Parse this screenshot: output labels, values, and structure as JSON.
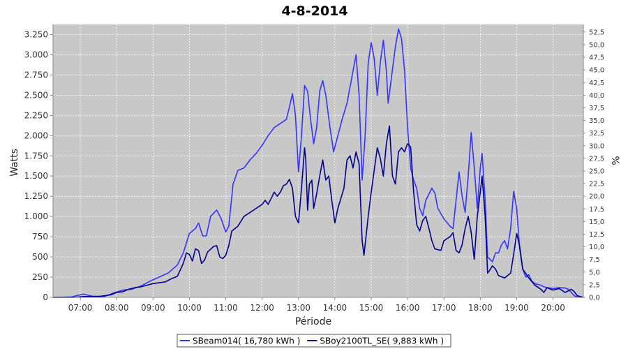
{
  "chart_data": {
    "type": "line",
    "title": "4-8-2014",
    "xlabel": "Période",
    "ylabel": "Watts",
    "y2label": "%",
    "x_range": [
      "06:15",
      "20:50"
    ],
    "x_ticks": [
      "07:00",
      "08:00",
      "09:00",
      "10:00",
      "11:00",
      "12:00",
      "13:00",
      "14:00",
      "15:00",
      "16:00",
      "17:00",
      "18:00",
      "19:00",
      "20:00"
    ],
    "ylim": [
      0,
      3375
    ],
    "y_ticks": [
      0,
      250,
      500,
      750,
      1000,
      1250,
      1500,
      1750,
      2000,
      2250,
      2500,
      2750,
      3000,
      3250
    ],
    "y_tick_labels": [
      "0",
      "250",
      "500",
      "750",
      "1.000",
      "1.250",
      "1.500",
      "1.750",
      "2.000",
      "2.250",
      "2.500",
      "2.750",
      "3.000",
      "3.250"
    ],
    "y2lim": [
      0,
      54
    ],
    "y2_ticks": [
      0,
      2.5,
      5,
      7.5,
      10,
      12.5,
      15,
      17.5,
      20,
      22.5,
      25,
      27.5,
      30,
      32.5,
      35,
      37.5,
      40,
      42.5,
      45,
      47.5,
      50,
      52.5
    ],
    "y2_tick_labels": [
      "0,0",
      "2,5",
      "5,0",
      "7,5",
      "10,0",
      "12,5",
      "15,0",
      "17,5",
      "20,0",
      "22,5",
      "25,0",
      "27,5",
      "30,0",
      "32,5",
      "35,0",
      "37,5",
      "40,0",
      "42,5",
      "45,0",
      "47,5",
      "50,0",
      "52,5"
    ],
    "grid": true,
    "legend_position": "bottom-center",
    "series": [
      {
        "name": "SBeam014( 16,780 kWh )",
        "color": "#3333ff",
        "points": [
          [
            "06:15",
            0
          ],
          [
            "06:45",
            5
          ],
          [
            "07:05",
            40
          ],
          [
            "07:20",
            15
          ],
          [
            "07:40",
            10
          ],
          [
            "07:55",
            55
          ],
          [
            "08:10",
            90
          ],
          [
            "08:25",
            100
          ],
          [
            "08:40",
            140
          ],
          [
            "08:55",
            200
          ],
          [
            "09:10",
            250
          ],
          [
            "09:25",
            300
          ],
          [
            "09:40",
            400
          ],
          [
            "09:50",
            550
          ],
          [
            "10:00",
            790
          ],
          [
            "10:10",
            850
          ],
          [
            "10:15",
            920
          ],
          [
            "10:22",
            760
          ],
          [
            "10:28",
            760
          ],
          [
            "10:35",
            1000
          ],
          [
            "10:45",
            1080
          ],
          [
            "10:52",
            980
          ],
          [
            "11:00",
            810
          ],
          [
            "11:05",
            880
          ],
          [
            "11:12",
            1400
          ],
          [
            "11:20",
            1570
          ],
          [
            "11:30",
            1600
          ],
          [
            "11:40",
            1700
          ],
          [
            "11:50",
            1780
          ],
          [
            "12:00",
            1880
          ],
          [
            "12:10",
            2000
          ],
          [
            "12:20",
            2100
          ],
          [
            "12:30",
            2150
          ],
          [
            "12:40",
            2200
          ],
          [
            "12:45",
            2350
          ],
          [
            "12:50",
            2520
          ],
          [
            "12:55",
            2250
          ],
          [
            "13:00",
            1550
          ],
          [
            "13:05",
            2000
          ],
          [
            "13:10",
            2620
          ],
          [
            "13:15",
            2550
          ],
          [
            "13:20",
            2200
          ],
          [
            "13:25",
            1900
          ],
          [
            "13:30",
            2100
          ],
          [
            "13:35",
            2550
          ],
          [
            "13:40",
            2680
          ],
          [
            "13:45",
            2500
          ],
          [
            "13:52",
            2100
          ],
          [
            "13:58",
            1800
          ],
          [
            "14:05",
            2000
          ],
          [
            "14:12",
            2200
          ],
          [
            "14:20",
            2400
          ],
          [
            "14:30",
            2800
          ],
          [
            "14:35",
            3000
          ],
          [
            "14:40",
            2500
          ],
          [
            "14:45",
            1450
          ],
          [
            "14:50",
            2000
          ],
          [
            "14:55",
            2900
          ],
          [
            "15:00",
            3150
          ],
          [
            "15:05",
            2950
          ],
          [
            "15:10",
            2500
          ],
          [
            "15:15",
            2900
          ],
          [
            "15:20",
            3180
          ],
          [
            "15:25",
            2800
          ],
          [
            "15:28",
            2400
          ],
          [
            "15:33",
            2700
          ],
          [
            "15:40",
            3100
          ],
          [
            "15:45",
            3320
          ],
          [
            "15:50",
            3200
          ],
          [
            "15:55",
            2800
          ],
          [
            "16:00",
            2100
          ],
          [
            "16:05",
            1600
          ],
          [
            "16:10",
            1450
          ],
          [
            "16:15",
            1350
          ],
          [
            "16:20",
            1100
          ],
          [
            "16:25",
            1010
          ],
          [
            "16:30",
            1200
          ],
          [
            "16:40",
            1350
          ],
          [
            "16:45",
            1290
          ],
          [
            "16:50",
            1100
          ],
          [
            "17:00",
            970
          ],
          [
            "17:10",
            880
          ],
          [
            "17:15",
            850
          ],
          [
            "17:20",
            1200
          ],
          [
            "17:25",
            1550
          ],
          [
            "17:30",
            1250
          ],
          [
            "17:35",
            1050
          ],
          [
            "17:40",
            1500
          ],
          [
            "17:45",
            2040
          ],
          [
            "17:50",
            1600
          ],
          [
            "17:55",
            1100
          ],
          [
            "18:00",
            1600
          ],
          [
            "18:03",
            1780
          ],
          [
            "18:08",
            1200
          ],
          [
            "18:12",
            500
          ],
          [
            "18:20",
            440
          ],
          [
            "18:25",
            550
          ],
          [
            "18:30",
            550
          ],
          [
            "18:35",
            650
          ],
          [
            "18:40",
            700
          ],
          [
            "18:45",
            600
          ],
          [
            "18:50",
            850
          ],
          [
            "18:55",
            1310
          ],
          [
            "19:00",
            1100
          ],
          [
            "19:05",
            600
          ],
          [
            "19:10",
            350
          ],
          [
            "19:15",
            250
          ],
          [
            "19:20",
            280
          ],
          [
            "19:25",
            200
          ],
          [
            "19:30",
            170
          ],
          [
            "19:40",
            150
          ],
          [
            "19:45",
            130
          ],
          [
            "19:50",
            120
          ],
          [
            "20:00",
            110
          ],
          [
            "20:10",
            120
          ],
          [
            "20:20",
            115
          ],
          [
            "20:25",
            100
          ],
          [
            "20:30",
            60
          ],
          [
            "20:35",
            20
          ],
          [
            "20:40",
            5
          ],
          [
            "20:50",
            0
          ]
        ]
      },
      {
        "name": "SBoy2100TL_SE( 9,883 kWh )",
        "color": "#00008b",
        "points": [
          [
            "06:15",
            0
          ],
          [
            "06:50",
            0
          ],
          [
            "07:05",
            10
          ],
          [
            "07:30",
            10
          ],
          [
            "07:50",
            30
          ],
          [
            "08:00",
            60
          ],
          [
            "08:10",
            70
          ],
          [
            "08:20",
            100
          ],
          [
            "08:30",
            120
          ],
          [
            "08:40",
            130
          ],
          [
            "08:50",
            150
          ],
          [
            "09:00",
            170
          ],
          [
            "09:10",
            180
          ],
          [
            "09:20",
            190
          ],
          [
            "09:30",
            230
          ],
          [
            "09:40",
            260
          ],
          [
            "09:50",
            420
          ],
          [
            "09:55",
            550
          ],
          [
            "10:00",
            530
          ],
          [
            "10:05",
            450
          ],
          [
            "10:10",
            600
          ],
          [
            "10:15",
            580
          ],
          [
            "10:20",
            420
          ],
          [
            "10:25",
            460
          ],
          [
            "10:30",
            560
          ],
          [
            "10:40",
            630
          ],
          [
            "10:45",
            640
          ],
          [
            "10:50",
            500
          ],
          [
            "10:55",
            480
          ],
          [
            "11:00",
            520
          ],
          [
            "11:05",
            640
          ],
          [
            "11:10",
            820
          ],
          [
            "11:20",
            880
          ],
          [
            "11:30",
            1000
          ],
          [
            "11:40",
            1050
          ],
          [
            "11:50",
            1100
          ],
          [
            "12:00",
            1150
          ],
          [
            "12:05",
            1200
          ],
          [
            "12:10",
            1150
          ],
          [
            "12:20",
            1300
          ],
          [
            "12:25",
            1250
          ],
          [
            "12:30",
            1300
          ],
          [
            "12:35",
            1380
          ],
          [
            "12:40",
            1400
          ],
          [
            "12:45",
            1460
          ],
          [
            "12:50",
            1350
          ],
          [
            "12:55",
            1000
          ],
          [
            "13:00",
            920
          ],
          [
            "13:05",
            1350
          ],
          [
            "13:10",
            1850
          ],
          [
            "13:12",
            1700
          ],
          [
            "13:15",
            1080
          ],
          [
            "13:18",
            1400
          ],
          [
            "13:22",
            1450
          ],
          [
            "13:25",
            1100
          ],
          [
            "13:30",
            1280
          ],
          [
            "13:35",
            1500
          ],
          [
            "13:40",
            1700
          ],
          [
            "13:45",
            1450
          ],
          [
            "13:50",
            1500
          ],
          [
            "13:55",
            1200
          ],
          [
            "14:00",
            920
          ],
          [
            "14:05",
            1100
          ],
          [
            "14:15",
            1350
          ],
          [
            "14:20",
            1700
          ],
          [
            "14:25",
            1750
          ],
          [
            "14:30",
            1600
          ],
          [
            "14:35",
            1800
          ],
          [
            "14:40",
            1650
          ],
          [
            "14:45",
            700
          ],
          [
            "14:48",
            520
          ],
          [
            "14:55",
            1000
          ],
          [
            "15:00",
            1300
          ],
          [
            "15:10",
            1850
          ],
          [
            "15:15",
            1720
          ],
          [
            "15:20",
            1500
          ],
          [
            "15:25",
            1900
          ],
          [
            "15:30",
            2120
          ],
          [
            "15:35",
            1500
          ],
          [
            "15:40",
            1400
          ],
          [
            "15:45",
            1800
          ],
          [
            "15:50",
            1850
          ],
          [
            "15:55",
            1800
          ],
          [
            "16:00",
            1900
          ],
          [
            "16:05",
            1860
          ],
          [
            "16:10",
            1300
          ],
          [
            "16:15",
            900
          ],
          [
            "16:20",
            820
          ],
          [
            "16:25",
            950
          ],
          [
            "16:30",
            1000
          ],
          [
            "16:35",
            860
          ],
          [
            "16:40",
            700
          ],
          [
            "16:45",
            600
          ],
          [
            "16:55",
            580
          ],
          [
            "17:00",
            700
          ],
          [
            "17:10",
            750
          ],
          [
            "17:15",
            800
          ],
          [
            "17:20",
            580
          ],
          [
            "17:25",
            550
          ],
          [
            "17:30",
            650
          ],
          [
            "17:35",
            850
          ],
          [
            "17:40",
            1000
          ],
          [
            "17:45",
            800
          ],
          [
            "17:50",
            470
          ],
          [
            "17:55",
            1000
          ],
          [
            "18:00",
            1300
          ],
          [
            "18:03",
            1500
          ],
          [
            "18:08",
            1000
          ],
          [
            "18:12",
            300
          ],
          [
            "18:15",
            330
          ],
          [
            "18:20",
            390
          ],
          [
            "18:25",
            350
          ],
          [
            "18:30",
            270
          ],
          [
            "18:40",
            240
          ],
          [
            "18:50",
            300
          ],
          [
            "18:55",
            530
          ],
          [
            "19:00",
            790
          ],
          [
            "19:05",
            630
          ],
          [
            "19:10",
            350
          ],
          [
            "19:20",
            240
          ],
          [
            "19:30",
            150
          ],
          [
            "19:40",
            100
          ],
          [
            "19:45",
            60
          ],
          [
            "19:50",
            120
          ],
          [
            "20:00",
            90
          ],
          [
            "20:10",
            110
          ],
          [
            "20:20",
            60
          ],
          [
            "20:25",
            80
          ],
          [
            "20:30",
            100
          ],
          [
            "20:35",
            70
          ],
          [
            "20:40",
            20
          ],
          [
            "20:50",
            0
          ]
        ]
      }
    ]
  }
}
